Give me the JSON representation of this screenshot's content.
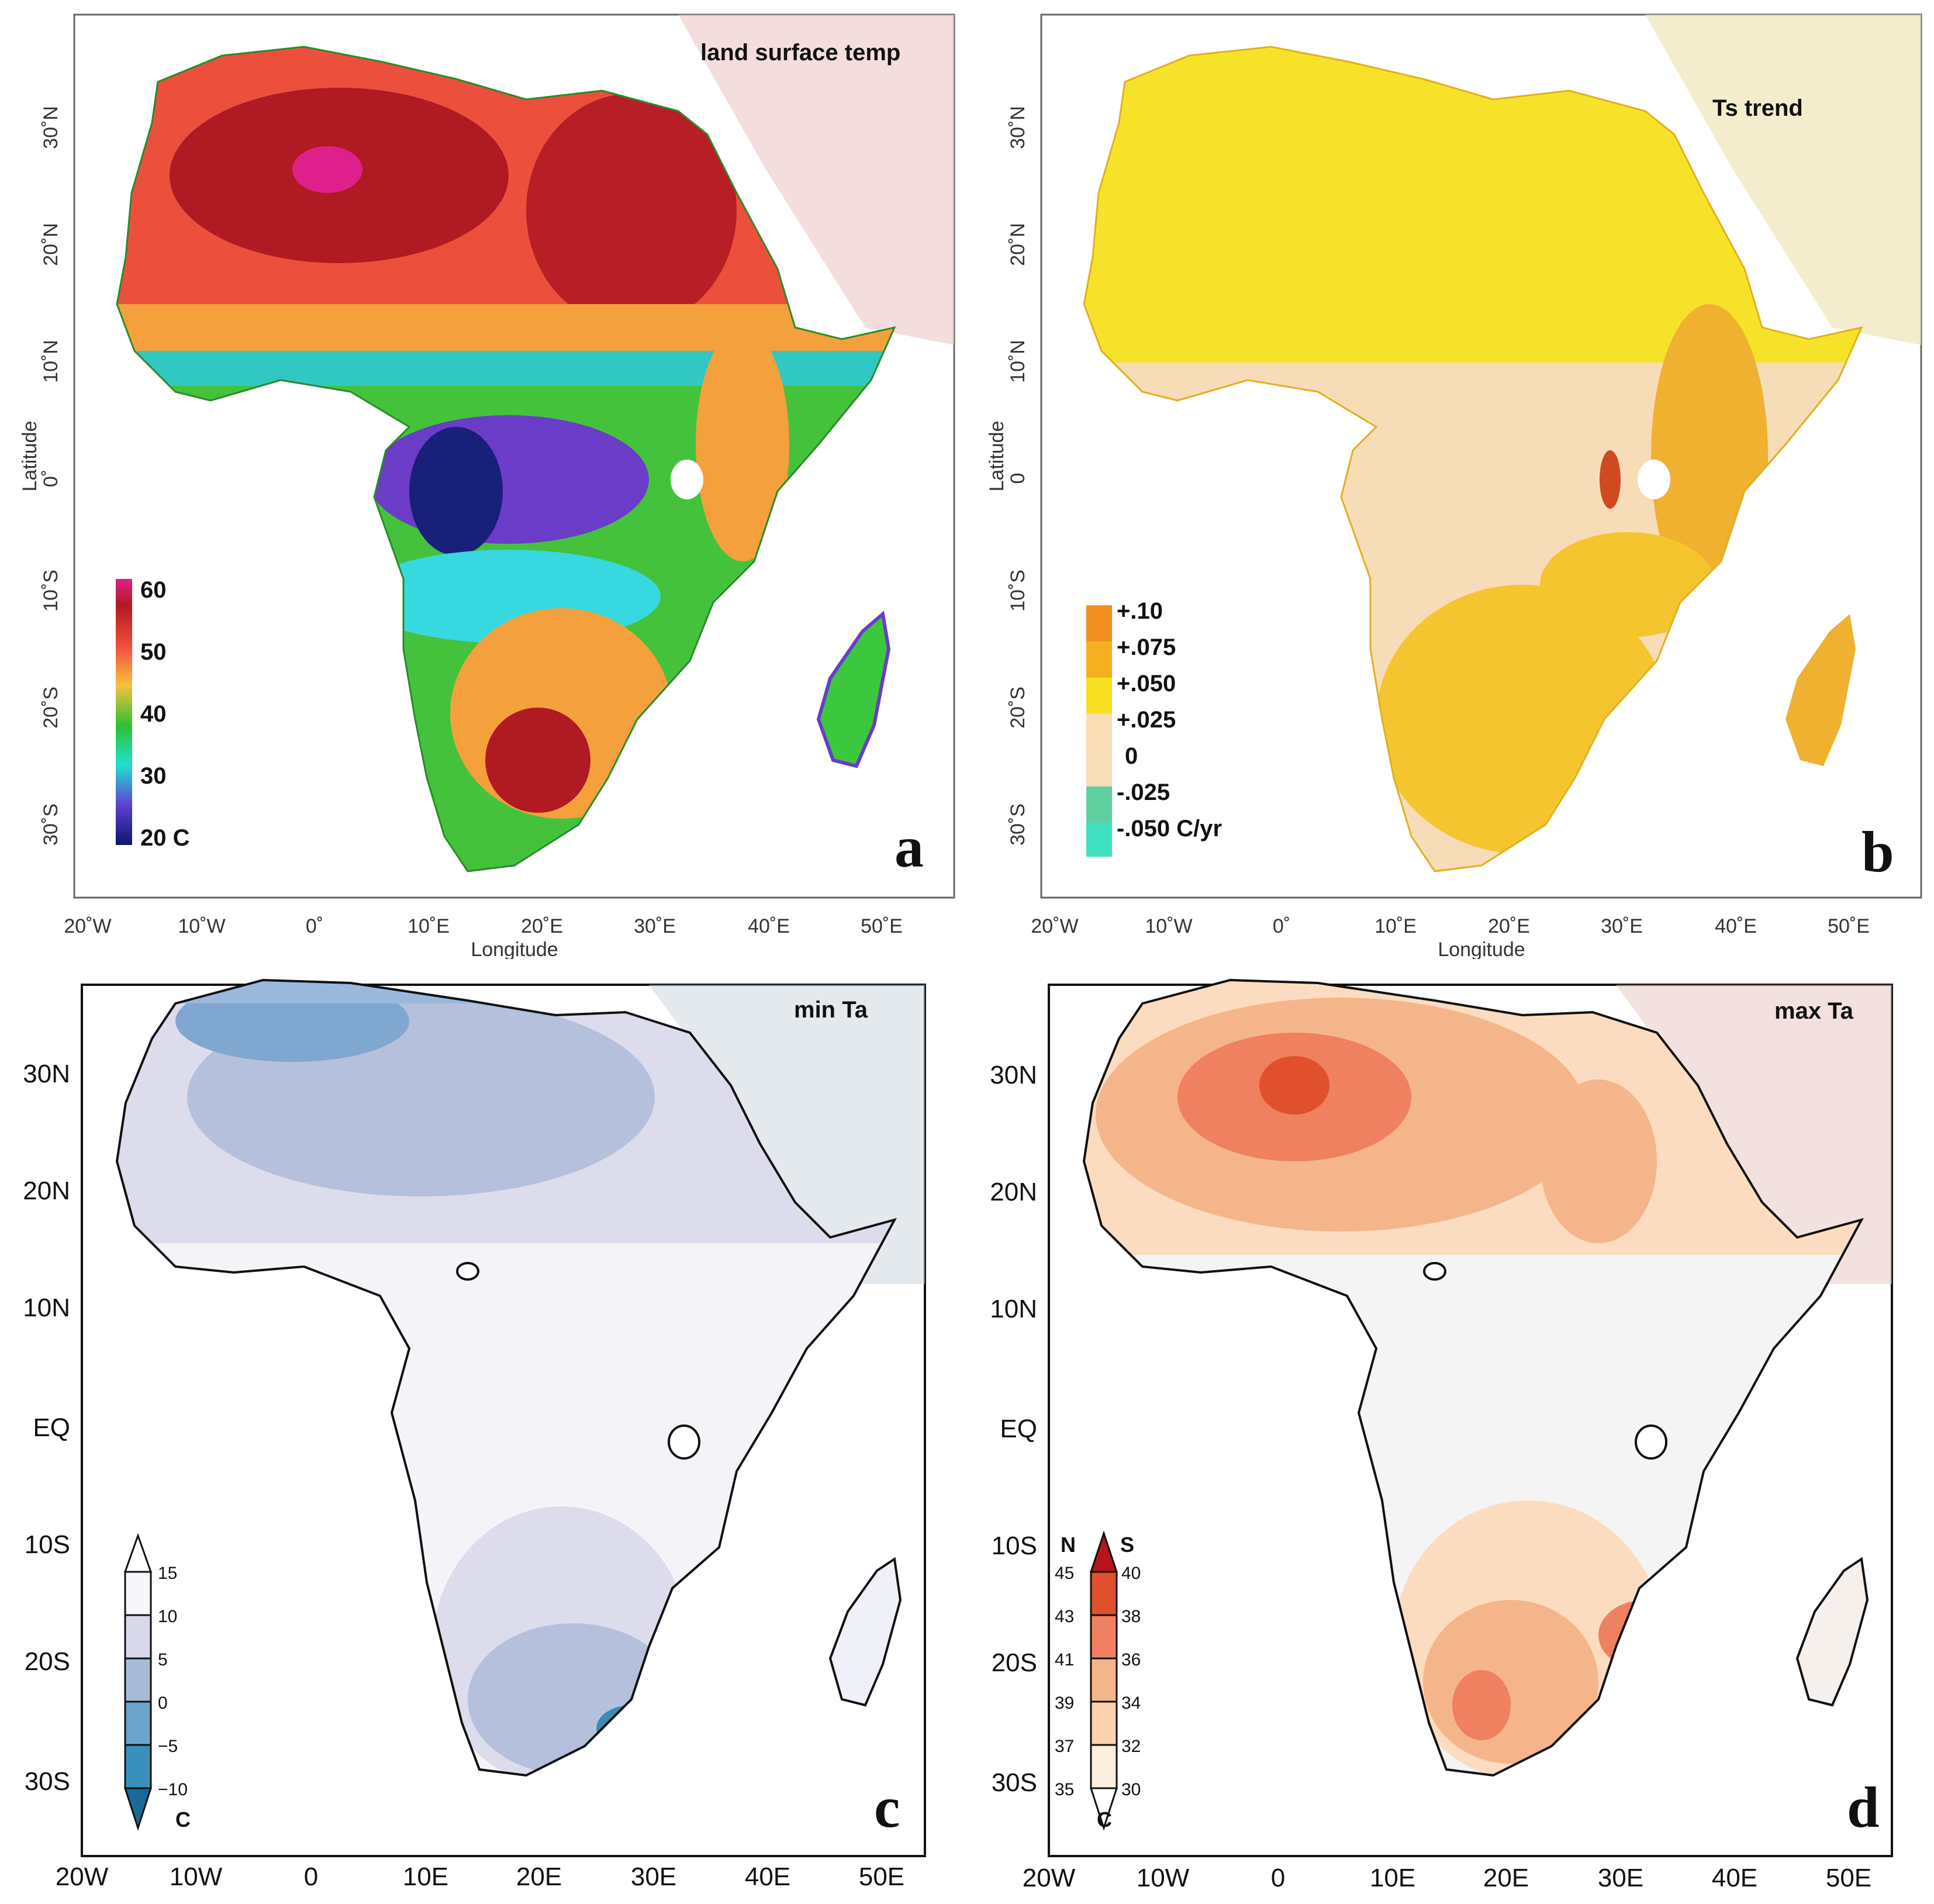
{
  "panels": {
    "a": {
      "letter": "a",
      "title": "land surface temp",
      "xlabel": "Longitude",
      "ylabel": "Latitude",
      "lon_ticks": [
        "20˚W",
        "10˚W",
        "0˚",
        "10˚E",
        "20˚E",
        "30˚E",
        "40˚E",
        "50˚E"
      ],
      "lat_ticks": [
        "30˚N",
        "20˚N",
        "10˚N",
        "0˚",
        "10˚S",
        "20˚S",
        "30˚S"
      ],
      "legend": [
        "60",
        "50",
        "40",
        "30",
        "20 C"
      ],
      "colors": {
        "sahara": "#e84a3a",
        "hot": "#b01a22",
        "sahel": "#f4a03c",
        "green": "#44c23c",
        "cyan": "#38d8e0",
        "blue": "#3c70e0",
        "purple": "#6a3cc8",
        "navy": "#18207a"
      }
    },
    "b": {
      "letter": "b",
      "title": "Ts trend",
      "xlabel": "Longitude",
      "ylabel": "Latitude",
      "lon_ticks": [
        "20˚W",
        "10˚W",
        "0˚",
        "10˚E",
        "20˚E",
        "30˚E",
        "40˚E",
        "50˚E"
      ],
      "lat_ticks": [
        "30˚N",
        "20˚N",
        "10˚N",
        "0",
        "10˚S",
        "20˚S",
        "30˚S"
      ],
      "legend": [
        "+.10",
        "+.075",
        "+.050",
        "+.025",
        "0",
        "-.025",
        "-.050 C/yr"
      ],
      "colors": {
        "north": "#f7e22a",
        "center": "#f9dcbc",
        "east": "#f0a828",
        "south": "#f5c230",
        "hotspot": "#d04a20"
      }
    },
    "c": {
      "letter": "c",
      "title": "min Ta",
      "lon_ticks": [
        "20W",
        "10W",
        "0",
        "10E",
        "20E",
        "30E",
        "40E",
        "50E"
      ],
      "lat_ticks": [
        "30N",
        "20N",
        "10N",
        "EQ",
        "10S",
        "20S",
        "30S"
      ],
      "legend": [
        "15",
        "10",
        "5",
        "0",
        "−5",
        "−10"
      ],
      "unit": "C",
      "colors": {
        "land": "#f4f4f8",
        "light": "#dcdced",
        "mid": "#b4c0dc",
        "dark": "#7fa7cf",
        "darkest": "#3d8ab5"
      }
    },
    "d": {
      "letter": "d",
      "title": "max Ta",
      "lon_ticks": [
        "20W",
        "10W",
        "0",
        "10E",
        "20E",
        "30E",
        "40E",
        "50E"
      ],
      "lat_ticks": [
        "30N",
        "20N",
        "10N",
        "EQ",
        "10S",
        "20S",
        "30S"
      ],
      "legend_header": {
        "north": "N",
        "south": "S"
      },
      "legend_n": [
        "45",
        "43",
        "41",
        "39",
        "37",
        "35"
      ],
      "legend_s": [
        "40",
        "38",
        "36",
        "34",
        "32",
        "30"
      ],
      "unit": "C",
      "colors": {
        "land": "#f4f4f4",
        "light": "#fbdcc0",
        "mid": "#f5b58a",
        "dark": "#ef8060",
        "darkest": "#e0502c"
      }
    }
  }
}
